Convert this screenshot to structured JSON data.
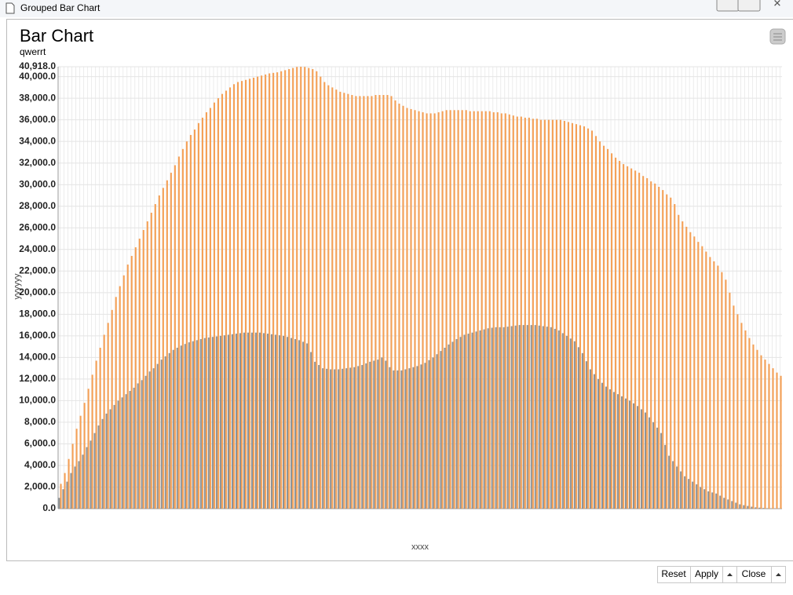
{
  "window": {
    "title": "Grouped Bar Chart"
  },
  "buttons": [
    "Reset",
    "Apply",
    "Close"
  ],
  "chart_data": {
    "type": "bar",
    "title": "Bar Chart",
    "subtitle": "qwerrt",
    "x_label": "xxxx",
    "y_label": "yyyyyy",
    "grid": true,
    "ylim": [
      0,
      40918
    ],
    "yticks": [
      {
        "value": 0,
        "label": "0.0"
      },
      {
        "value": 2000,
        "label": "2,000.0"
      },
      {
        "value": 4000,
        "label": "4,000.0"
      },
      {
        "value": 6000,
        "label": "6,000.0"
      },
      {
        "value": 8000,
        "label": "8,000.0"
      },
      {
        "value": 10000,
        "label": "10,000.0"
      },
      {
        "value": 12000,
        "label": "12,000.0"
      },
      {
        "value": 14000,
        "label": "14,000.0"
      },
      {
        "value": 16000,
        "label": "16,000.0"
      },
      {
        "value": 18000,
        "label": "18,000.0"
      },
      {
        "value": 20000,
        "label": "20,000.0"
      },
      {
        "value": 22000,
        "label": "22,000.0"
      },
      {
        "value": 24000,
        "label": "24,000.0"
      },
      {
        "value": 26000,
        "label": "26,000.0"
      },
      {
        "value": 28000,
        "label": "28,000.0"
      },
      {
        "value": 30000,
        "label": "30,000.0"
      },
      {
        "value": 32000,
        "label": "32,000.0"
      },
      {
        "value": 34000,
        "label": "34,000.0"
      },
      {
        "value": 36000,
        "label": "36,000.0"
      },
      {
        "value": 38000,
        "label": "38,000.0"
      },
      {
        "value": 40000,
        "label": "40,000.0"
      },
      {
        "value": 40918,
        "label": "40,918.0"
      }
    ],
    "categories": [
      null,
      null,
      null,
      null,
      null,
      null,
      null,
      null,
      null,
      null,
      null,
      null,
      null,
      null,
      null,
      null,
      null,
      null,
      null,
      null,
      null,
      null,
      null,
      null,
      null,
      null,
      null,
      null,
      null,
      null,
      null,
      null,
      null,
      null,
      null,
      null,
      null,
      null,
      null,
      null,
      null,
      null,
      null,
      null,
      null,
      null,
      null,
      null,
      null,
      null,
      null,
      null,
      null,
      null,
      null,
      null,
      null,
      null,
      null,
      null,
      null,
      null,
      null,
      null,
      null,
      null,
      null,
      null,
      null,
      null,
      null,
      null,
      null,
      null,
      null,
      null,
      null,
      null,
      null,
      null,
      null,
      null,
      null,
      null,
      null,
      null,
      null,
      null,
      null,
      null,
      null,
      null,
      null,
      null,
      null,
      null,
      null,
      null,
      null,
      null,
      null,
      null,
      null,
      null,
      null,
      null,
      null,
      null,
      null,
      null,
      null,
      null,
      null,
      null,
      null,
      null,
      null,
      null,
      null,
      null,
      null,
      null,
      null,
      null,
      null,
      null,
      null,
      null,
      null,
      null,
      null,
      null,
      null,
      null,
      null,
      null,
      null,
      null,
      null,
      null,
      null,
      null,
      null,
      null,
      null,
      null,
      null,
      null,
      null,
      null,
      null,
      null,
      null,
      null,
      null,
      null,
      null,
      null,
      null,
      null,
      null,
      null,
      null,
      null,
      null,
      null,
      null,
      null,
      null,
      null,
      null,
      null,
      null,
      null,
      null,
      null,
      null,
      null,
      null,
      null,
      null,
      null,
      null,
      null
    ],
    "series": [
      {
        "color": "#8c9398",
        "values": [
          1000,
          1800,
          2500,
          3300,
          3900,
          4400,
          5000,
          5700,
          6300,
          7000,
          7700,
          8300,
          8800,
          9200,
          9600,
          10000,
          10300,
          10600,
          10900,
          11200,
          11600,
          11900,
          12300,
          12700,
          13000,
          13400,
          13800,
          14100,
          14400,
          14700,
          14900,
          15100,
          15250,
          15400,
          15500,
          15600,
          15700,
          15800,
          15850,
          15900,
          15950,
          16000,
          16050,
          16100,
          16150,
          16200,
          16250,
          16300,
          16300,
          16300,
          16300,
          16300,
          16250,
          16200,
          16150,
          16100,
          16050,
          16000,
          15900,
          15800,
          15700,
          15600,
          15450,
          15300,
          14500,
          13600,
          13300,
          13000,
          12950,
          12900,
          12900,
          12900,
          12950,
          13000,
          13050,
          13100,
          13200,
          13300,
          13450,
          13600,
          13700,
          13800,
          14000,
          13700,
          13100,
          12800,
          12800,
          12800,
          12900,
          13000,
          13100,
          13200,
          13350,
          13500,
          13750,
          14000,
          14300,
          14600,
          14900,
          15200,
          15450,
          15700,
          15900,
          16100,
          16200,
          16300,
          16400,
          16500,
          16600,
          16700,
          16750,
          16800,
          16800,
          16800,
          16850,
          16900,
          16950,
          17000,
          17000,
          17000,
          17000,
          17000,
          16950,
          16900,
          16850,
          16800,
          16650,
          16500,
          16250,
          16000,
          15750,
          15500,
          14950,
          14400,
          13650,
          12900,
          12450,
          12000,
          11650,
          11300,
          11050,
          10800,
          10600,
          10400,
          10200,
          10000,
          9750,
          9500,
          9200,
          8900,
          8450,
          8000,
          7500,
          7000,
          5900,
          4900,
          4400,
          3900,
          3450,
          3000,
          2750,
          2500,
          2250,
          2000,
          1800,
          1600,
          1500,
          1400,
          1200,
          1000,
          850,
          700,
          550,
          400,
          320,
          250,
          180,
          120,
          90,
          60,
          40,
          20,
          10,
          5
        ]
      },
      {
        "color": "#f5a157",
        "values": [
          2300,
          3300,
          4600,
          6000,
          7400,
          8600,
          9800,
          11100,
          12400,
          13700,
          14900,
          16100,
          17200,
          18400,
          19600,
          20600,
          21600,
          22600,
          23400,
          24200,
          25000,
          25800,
          26600,
          27400,
          28200,
          29000,
          29700,
          30400,
          31100,
          31800,
          32600,
          33300,
          34000,
          34600,
          35100,
          35700,
          36200,
          36700,
          37100,
          37600,
          38000,
          38400,
          38700,
          39000,
          39300,
          39500,
          39600,
          39700,
          39800,
          39900,
          40000,
          40100,
          40200,
          40300,
          40350,
          40400,
          40500,
          40600,
          40700,
          40800,
          40900,
          40918,
          40900,
          40800,
          40700,
          40500,
          40000,
          39500,
          39200,
          39000,
          38800,
          38600,
          38500,
          38400,
          38300,
          38200,
          38200,
          38200,
          38200,
          38200,
          38300,
          38300,
          38300,
          38300,
          38200,
          37800,
          37500,
          37300,
          37100,
          37000,
          36900,
          36800,
          36700,
          36600,
          36600,
          36600,
          36700,
          36800,
          36900,
          36900,
          36900,
          36900,
          36900,
          36900,
          36800,
          36800,
          36800,
          36800,
          36800,
          36800,
          36700,
          36700,
          36600,
          36600,
          36500,
          36400,
          36300,
          36300,
          36200,
          36200,
          36100,
          36100,
          36000,
          36000,
          36000,
          36000,
          36000,
          36000,
          35900,
          35800,
          35700,
          35600,
          35500,
          35400,
          35200,
          35000,
          34500,
          34000,
          33600,
          33300,
          32900,
          32500,
          32200,
          31900,
          31700,
          31500,
          31300,
          31100,
          30800,
          30600,
          30300,
          30100,
          29800,
          29500,
          29100,
          28800,
          28200,
          27200,
          26600,
          26100,
          25600,
          25200,
          24700,
          24300,
          23800,
          23300,
          22900,
          22500,
          21900,
          21200,
          20000,
          18800,
          18000,
          17200,
          16500,
          15800,
          15200,
          14700,
          14200,
          13800,
          13400,
          13000,
          12600,
          12300
        ]
      }
    ]
  }
}
